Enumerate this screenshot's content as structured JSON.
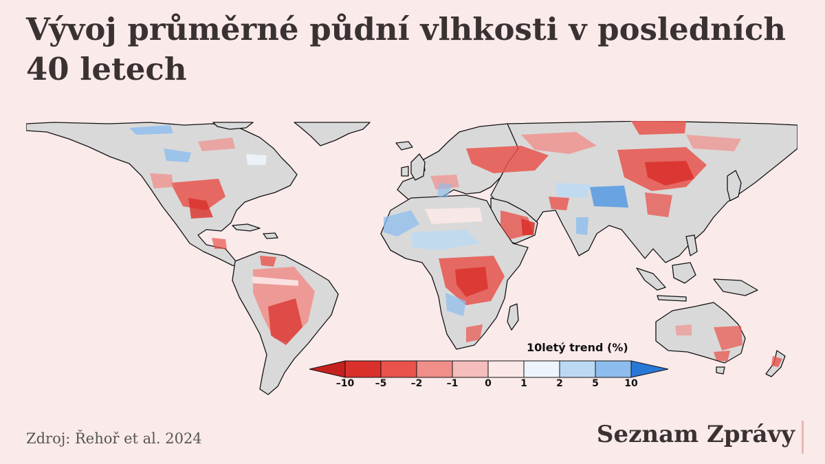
{
  "title": "Vývoj průměrné půdní vlhkosti v posledních 40 letech",
  "source": "Zdroj: Řehoř et al. 2024",
  "brand": "Seznam Zprávy",
  "legend": {
    "title": "10letý trend (%)",
    "ticks": [
      "–10",
      "–5",
      "–2",
      "–1",
      "0",
      "1",
      "2",
      "5",
      "10"
    ],
    "bins": [
      {
        "color": "#d9302b"
      },
      {
        "color": "#e8534c"
      },
      {
        "color": "#f08e8a"
      },
      {
        "color": "#f5bdbb"
      },
      {
        "color": "#fbe8e8"
      },
      {
        "color": "#edf4fb"
      },
      {
        "color": "#bcd9f3"
      },
      {
        "color": "#8cbdee"
      },
      {
        "color": "#4d95e3"
      }
    ],
    "arrow_low_color": "#c5201d",
    "arrow_high_color": "#2a78d6"
  },
  "colors": {
    "background": "#fbeaea",
    "land": "#d9d9d9",
    "coast": "#111111"
  }
}
